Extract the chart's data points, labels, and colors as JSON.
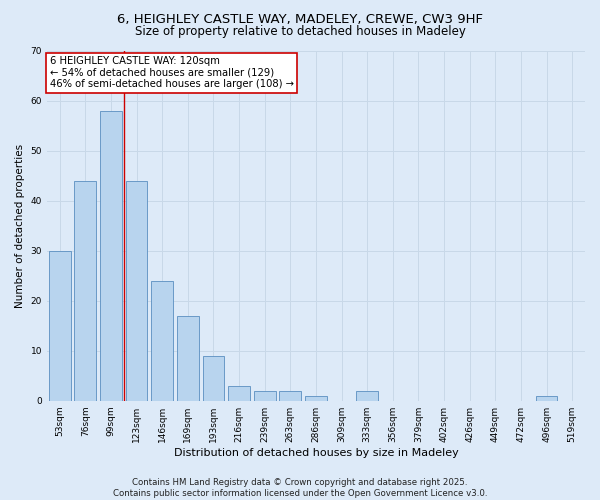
{
  "title": "6, HEIGHLEY CASTLE WAY, MADELEY, CREWE, CW3 9HF",
  "subtitle": "Size of property relative to detached houses in Madeley",
  "xlabel": "Distribution of detached houses by size in Madeley",
  "ylabel": "Number of detached properties",
  "categories": [
    "53sqm",
    "76sqm",
    "99sqm",
    "123sqm",
    "146sqm",
    "169sqm",
    "193sqm",
    "216sqm",
    "239sqm",
    "263sqm",
    "286sqm",
    "309sqm",
    "333sqm",
    "356sqm",
    "379sqm",
    "402sqm",
    "426sqm",
    "449sqm",
    "472sqm",
    "496sqm",
    "519sqm"
  ],
  "values": [
    30,
    44,
    58,
    44,
    24,
    17,
    9,
    3,
    2,
    2,
    1,
    0,
    2,
    0,
    0,
    0,
    0,
    0,
    0,
    1,
    0
  ],
  "bar_color": "#b8d4ee",
  "bar_edge_color": "#5a8fc0",
  "grid_color": "#c8d8e8",
  "background_color": "#ddeaf8",
  "vline_x": 2.5,
  "vline_color": "#cc0000",
  "annotation_text": "6 HEIGHLEY CASTLE WAY: 120sqm\n← 54% of detached houses are smaller (129)\n46% of semi-detached houses are larger (108) →",
  "annotation_box_color": "#ffffff",
  "annotation_box_edge": "#cc0000",
  "ylim": [
    0,
    70
  ],
  "yticks": [
    0,
    10,
    20,
    30,
    40,
    50,
    60,
    70
  ],
  "footer": "Contains HM Land Registry data © Crown copyright and database right 2025.\nContains public sector information licensed under the Open Government Licence v3.0.",
  "title_fontsize": 9.5,
  "subtitle_fontsize": 8.5,
  "xlabel_fontsize": 8,
  "ylabel_fontsize": 7.5,
  "tick_fontsize": 6.5,
  "annotation_fontsize": 7.2,
  "footer_fontsize": 6.2
}
